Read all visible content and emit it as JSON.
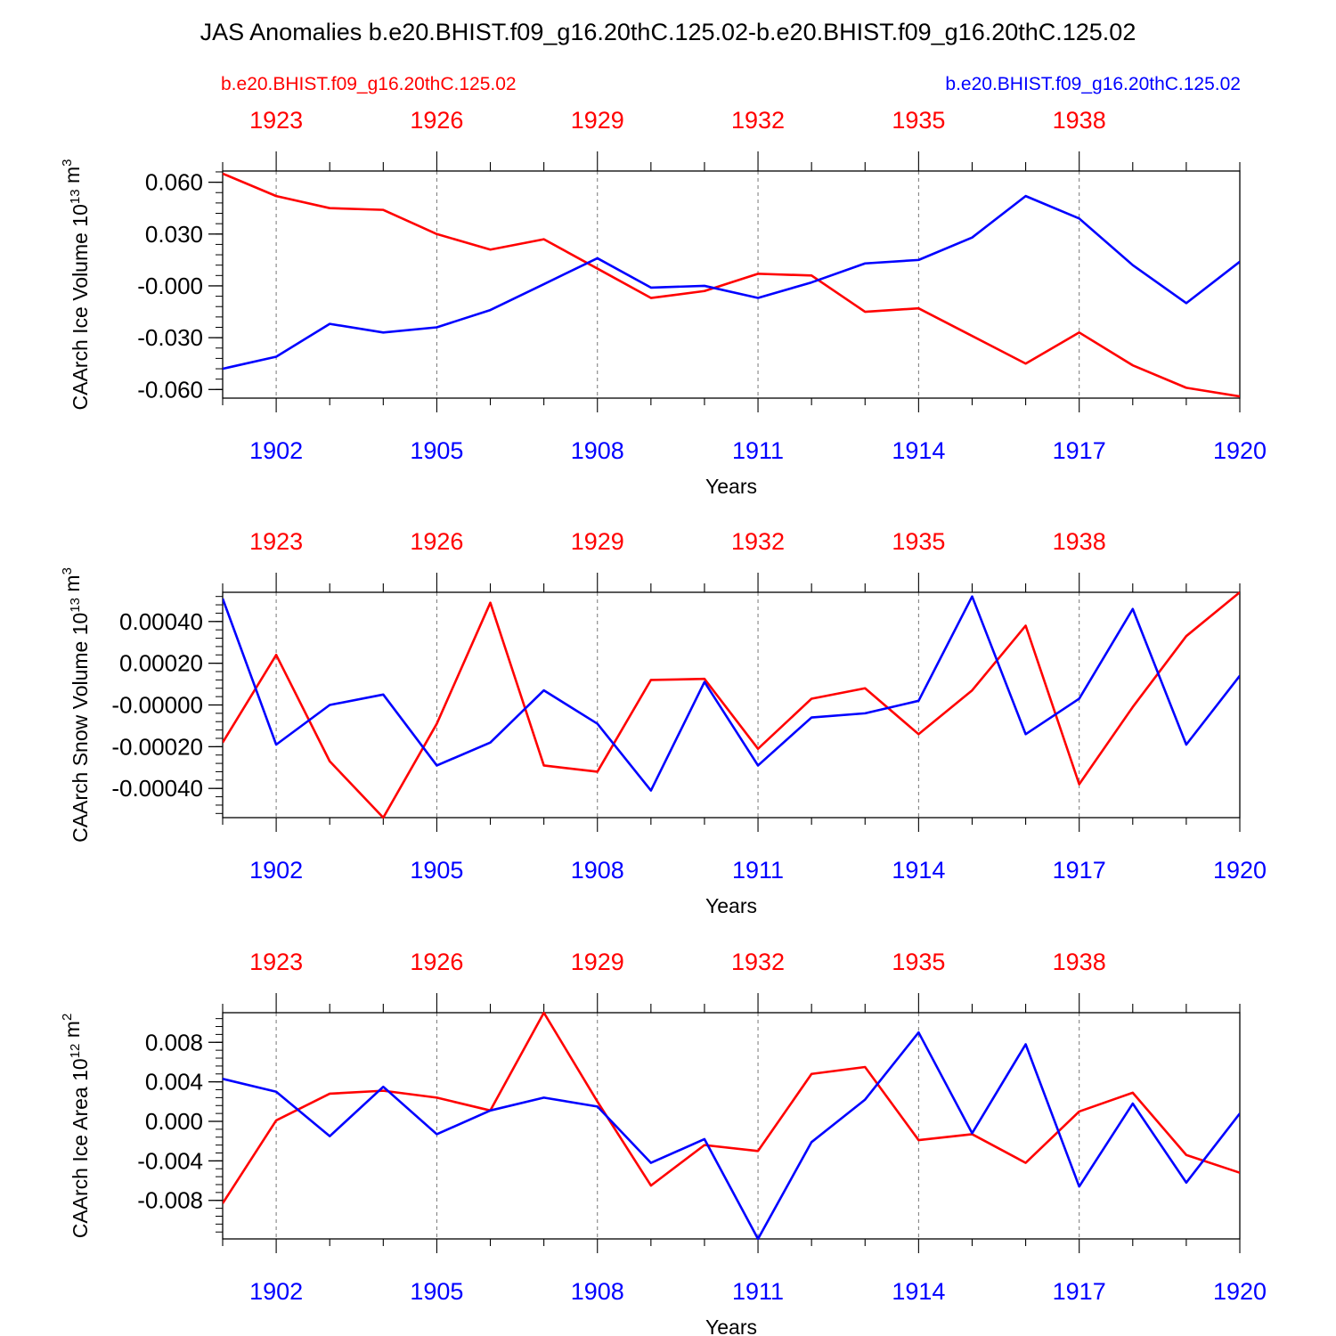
{
  "title": "JAS Anomalies b.e20.BHIST.f09_g16.20thC.125.02-b.e20.BHIST.f09_g16.20thC.125.02",
  "legend": {
    "left_label": "b.e20.BHIST.f09_g16.20thC.125.02",
    "right_label": "b.e20.BHIST.f09_g16.20thC.125.02",
    "left_color": "#ff0000",
    "right_color": "#0000ff"
  },
  "colors": {
    "red": "#ff0000",
    "blue": "#0000ff",
    "axis": "#000000",
    "grid": "#777777"
  },
  "chart_data": [
    {
      "type": "line",
      "ylabel": "CAArch Ice Volume 10",
      "ylabel_exp": "13",
      "ylabel_unit": "m",
      "ylabel_unit_exp": "3",
      "xlabel": "Years",
      "ylim": [
        -0.065,
        0.0665
      ],
      "yticks": [
        0.06,
        0.03,
        0.0,
        -0.03,
        -0.06
      ],
      "ytick_labels": [
        "0.060",
        "0.030",
        "-0.000",
        "-0.030",
        "-0.060"
      ],
      "yminor_step": 0.006,
      "series": [
        {
          "name": "b.e20.BHIST.f09_g16.20thC.125.02 (1922-1941)",
          "color": "#ff0000",
          "values": [
            0.065,
            0.052,
            0.045,
            0.044,
            0.03,
            0.021,
            0.027,
            0.01,
            -0.007,
            -0.003,
            0.007,
            0.006,
            -0.015,
            -0.013,
            -0.029,
            -0.045,
            -0.027,
            -0.046,
            -0.059,
            -0.064
          ]
        },
        {
          "name": "b.e20.BHIST.f09_g16.20thC.125.02 (1901-1920)",
          "color": "#0000ff",
          "values": [
            -0.048,
            -0.041,
            -0.022,
            -0.027,
            -0.024,
            -0.014,
            0.001,
            0.016,
            -0.001,
            0.0,
            -0.007,
            0.002,
            0.013,
            0.015,
            0.028,
            0.052,
            0.039,
            0.012,
            -0.01,
            0.014
          ]
        }
      ]
    },
    {
      "type": "line",
      "ylabel": "CAArch Snow Volume 10",
      "ylabel_exp": "13",
      "ylabel_unit": "m",
      "ylabel_unit_exp": "3",
      "xlabel": "Years",
      "ylim": [
        -0.00054,
        0.00054
      ],
      "yticks": [
        0.0004,
        0.0002,
        0.0,
        -0.0002,
        -0.0004
      ],
      "ytick_labels": [
        "0.00040",
        "0.00020",
        "-0.00000",
        "-0.00020",
        "-0.00040"
      ],
      "yminor_step": 4e-05,
      "series": [
        {
          "name": "b.e20.BHIST.f09_g16.20thC.125.02 (1922-1941)",
          "color": "#ff0000",
          "values": [
            -0.00018,
            0.00024,
            -0.00027,
            -0.00054,
            -9e-05,
            0.00049,
            -0.00029,
            -0.00032,
            0.00012,
            0.000125,
            -0.00021,
            3e-05,
            8e-05,
            -0.00014,
            7e-05,
            0.00038,
            -0.00038,
            -1e-05,
            0.00033,
            0.00054
          ]
        },
        {
          "name": "b.e20.BHIST.f09_g16.20thC.125.02 (1901-1920)",
          "color": "#0000ff",
          "values": [
            0.00051,
            -0.00019,
            0.0,
            5e-05,
            -0.00029,
            -0.00018,
            7e-05,
            -9e-05,
            -0.00041,
            0.00011,
            -0.00029,
            -6e-05,
            -4e-05,
            2e-05,
            0.00052,
            -0.00014,
            3e-05,
            0.00046,
            -0.00019,
            0.00014
          ]
        }
      ]
    },
    {
      "type": "line",
      "ylabel": "CAArch Ice Area 10",
      "ylabel_exp": "12",
      "ylabel_unit": "m",
      "ylabel_unit_exp": "2",
      "xlabel": "Years",
      "ylim": [
        -0.0119,
        0.011
      ],
      "yticks": [
        0.008,
        0.004,
        0.0,
        -0.004,
        -0.008
      ],
      "ytick_labels": [
        "0.008",
        "0.004",
        "0.000",
        "-0.004",
        "-0.008"
      ],
      "yminor_step": 0.0008,
      "series": [
        {
          "name": "b.e20.BHIST.f09_g16.20thC.125.02 (1922-1941)",
          "color": "#ff0000",
          "values": [
            -0.0083,
            0.0001,
            0.0028,
            0.0031,
            0.0024,
            0.0011,
            0.011,
            0.002,
            -0.0065,
            -0.0024,
            -0.003,
            0.0048,
            0.0055,
            -0.0019,
            -0.0013,
            -0.0042,
            0.001,
            0.0029,
            -0.0034,
            -0.0052
          ]
        },
        {
          "name": "b.e20.BHIST.f09_g16.20thC.125.02 (1901-1920)",
          "color": "#0000ff",
          "values": [
            0.0043,
            0.003,
            -0.0015,
            0.0035,
            -0.0013,
            0.0011,
            0.0024,
            0.0015,
            -0.0042,
            -0.0018,
            -0.0119,
            -0.0021,
            0.0022,
            0.009,
            -0.0012,
            0.0078,
            -0.0066,
            0.0018,
            -0.0062,
            0.0008
          ]
        }
      ]
    }
  ],
  "bottom_axis": {
    "start_year": 1901,
    "end_year": 1920,
    "labels": [
      "1902",
      "1905",
      "1908",
      "1911",
      "1914",
      "1917",
      "1920"
    ],
    "color": "#0000ff"
  },
  "top_axis": {
    "start_year": 1922,
    "end_year": 1941,
    "labels": [
      "1923",
      "1926",
      "1929",
      "1932",
      "1935",
      "1938"
    ],
    "color": "#ff0000"
  }
}
